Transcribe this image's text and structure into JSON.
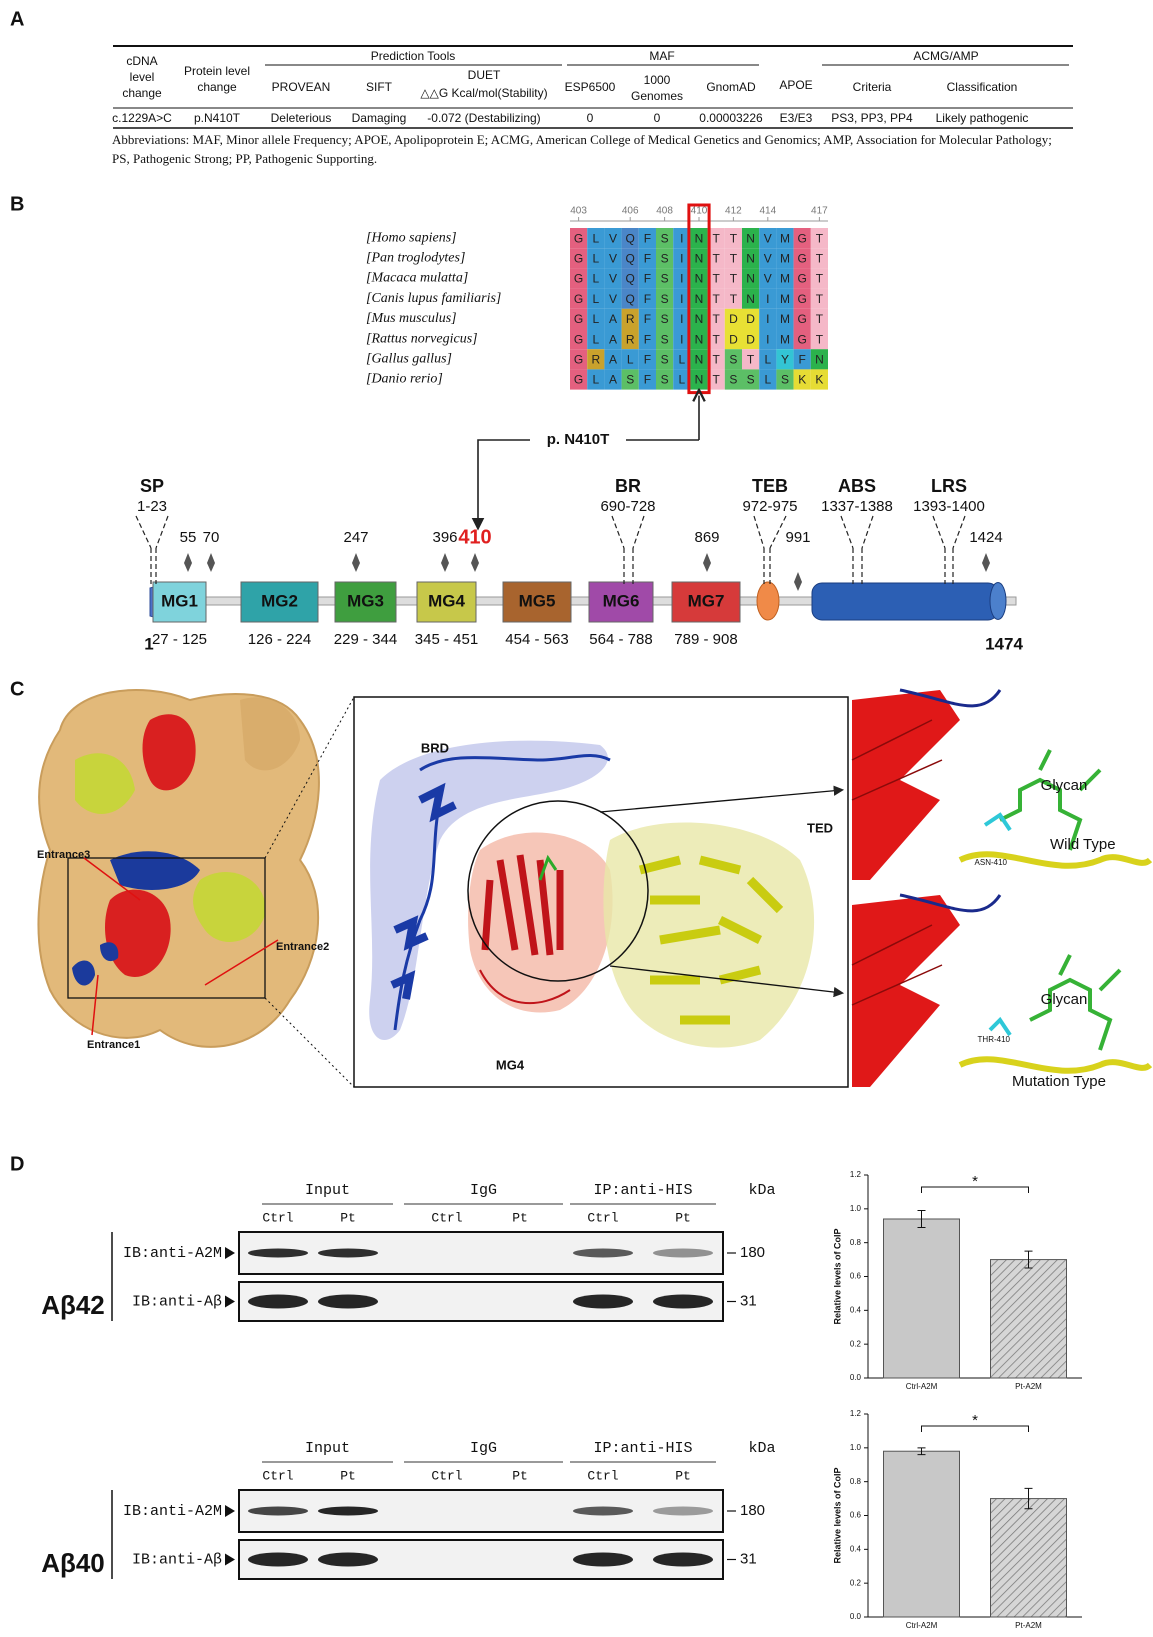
{
  "panel_a": {
    "label": "A",
    "header": {
      "cdna": [
        "cDNA",
        "level",
        "change"
      ],
      "protein": [
        "Protein level",
        "change"
      ],
      "prediction_tools": "Prediction Tools",
      "maf": "MAF",
      "apoe": "APOE",
      "acmg": "ACMG/AMP",
      "provean": "PROVEAN",
      "sift": "SIFT",
      "duet": [
        "DUET",
        "△△G Kcal/mol(Stability)"
      ],
      "esp": "ESP6500",
      "genomes": [
        "1000",
        "Genomes"
      ],
      "gnomad": "GnomAD",
      "criteria": "Criteria",
      "classification": "Classification"
    },
    "row": [
      "c.1229A>C",
      "p.N410T",
      "Deleterious",
      "Damaging",
      "-0.072 (Destabilizing)",
      "0",
      "0",
      "0.00003226",
      "E3/E3",
      "PS3, PP3, PP4",
      "Likely pathogenic"
    ],
    "note": "Abbreviations: MAF, Minor allele Frequency; APOE, Apolipoprotein E; ACMG, American College of Medical Genetics and Genomics; AMP, Association for Molecular Pathology; PS, Pathogenic Strong; PP, Pathogenic Supporting."
  },
  "panel_b": {
    "label": "B",
    "alignment": {
      "positions": [
        403,
        406,
        408,
        410,
        412,
        414,
        417
      ],
      "species": [
        "[Homo sapiens]",
        "[Pan troglodytes]",
        "[Macaca mulatta]",
        "[Canis lupus familiaris]",
        "[Mus musculus]",
        "[Rattus norvegicus]",
        "[Gallus gallus]",
        "[Danio rerio]"
      ],
      "sequences": [
        "GLVQFSINTTNVMGT",
        "GLVQFSINTTNVMGT",
        "GLVQFSINTTNVMGT",
        "GLVQFSINTTNIMGT",
        "GLARFSINTDDIMGT",
        "GLARFSINTDDIMGT",
        "GRALFSLNTSTLYFN",
        "GLASFSLNTSSLSKK"
      ],
      "residue_colors": {
        "G": "#e4607f",
        "L": "#3a9ad4",
        "V": "#3a9ad4",
        "Q": "#4a86c8",
        "F": "#3a9ad4",
        "S": "#5cbf66",
        "I": "#3a9ad4",
        "N": "#2bb24c",
        "T": "#f5b8c8",
        "M": "#3a9ad4",
        "A": "#3a9ad4",
        "R": "#c9a22c",
        "D": "#e8e034",
        "Y": "#33c4d4",
        "K": "#e6dc34"
      }
    },
    "mutation": "p. N410T",
    "start": 1,
    "end": 1474,
    "regions": [
      {
        "name": "SP",
        "range": "1-23"
      },
      {
        "name": "BR",
        "range": "690-728"
      },
      {
        "name": "TEB",
        "range": "972-975"
      },
      {
        "name": "ABS",
        "range": "1337-1388"
      },
      {
        "name": "LRS",
        "range": "1393-1400"
      }
    ],
    "sites": [
      55,
      70,
      247,
      396,
      410,
      869,
      991,
      1424
    ],
    "domains": [
      {
        "name": "MG1",
        "range": "27 - 125",
        "color": "#7fd3dc"
      },
      {
        "name": "MG2",
        "range": "126 - 224",
        "color": "#2fa3a8"
      },
      {
        "name": "MG3",
        "range": "229 - 344",
        "color": "#3f9e3f"
      },
      {
        "name": "MG4",
        "range": "345 - 451",
        "color": "#c7c84a"
      },
      {
        "name": "MG5",
        "range": "454 - 563",
        "color": "#a8642e"
      },
      {
        "name": "MG6",
        "range": "564 - 788",
        "color": "#a04aa8"
      },
      {
        "name": "MG7",
        "range": "789 - 908",
        "color": "#d63a3a"
      }
    ]
  },
  "panel_c": {
    "label": "C",
    "entrances": [
      "Entrance3",
      "Entrance2",
      "Entrance1"
    ],
    "brd": "BRD",
    "ted": "TED",
    "mg4": "MG4",
    "wild": {
      "glycan": "Glycan",
      "residue": "ASN-410",
      "type": "Wild Type"
    },
    "mutant": {
      "glycan": "Glycan",
      "residue": "THR-410",
      "type": "Mutation Type"
    }
  },
  "panel_d": {
    "label": "D",
    "blots": [
      {
        "title": "Aβ42",
        "groups": [
          "Input",
          "IgG",
          "IP:anti-HIS"
        ],
        "kda": "kDa",
        "lanes": [
          "Ctrl",
          "Pt",
          "Ctrl",
          "Pt",
          "Ctrl",
          "Pt"
        ],
        "rows": [
          {
            "label": "IB:anti-A2M",
            "size": 180
          },
          {
            "label": "IB:anti-Aβ",
            "size": 31
          }
        ]
      },
      {
        "title": "Aβ40",
        "groups": [
          "Input",
          "IgG",
          "IP:anti-HIS"
        ],
        "kda": "kDa",
        "lanes": [
          "Ctrl",
          "Pt",
          "Ctrl",
          "Pt",
          "Ctrl",
          "Pt"
        ],
        "rows": [
          {
            "label": "IB:anti-A2M",
            "size": 180
          },
          {
            "label": "IB:anti-Aβ",
            "size": 31
          }
        ]
      }
    ]
  },
  "chart_data": [
    {
      "type": "bar",
      "ylabel": "Relative levels of CoIP",
      "categories": [
        "Ctrl-A2M",
        "Pt-A2M"
      ],
      "values": [
        0.94,
        0.7
      ],
      "errors": [
        0.05,
        0.05
      ],
      "color": "#c8c8c8",
      "hatch": [
        false,
        true
      ],
      "ylim": [
        0,
        1.2
      ],
      "yticks": [
        {
          "value": 0,
          "label": "0.0"
        },
        {
          "value": 0.2,
          "label": "0.2"
        },
        {
          "value": 0.4,
          "label": "0.4"
        },
        {
          "value": 0.6,
          "label": "0.6"
        },
        {
          "value": 0.8,
          "label": "0.8"
        },
        {
          "value": 1,
          "label": "1.0"
        },
        {
          "value": 1.2,
          "label": "1.2"
        }
      ],
      "annotation": "*"
    },
    {
      "type": "bar",
      "ylabel": "Relative levels of CoIP",
      "categories": [
        "Ctrl-A2M",
        "Pt-A2M"
      ],
      "values": [
        0.98,
        0.7
      ],
      "errors": [
        0.02,
        0.06
      ],
      "color": "#c8c8c8",
      "hatch": [
        false,
        true
      ],
      "ylim": [
        0,
        1.2
      ],
      "yticks": [
        {
          "value": 0,
          "label": "0.0"
        },
        {
          "value": 0.2,
          "label": "0.2"
        },
        {
          "value": 0.4,
          "label": "0.4"
        },
        {
          "value": 0.6,
          "label": "0.6"
        },
        {
          "value": 0.8,
          "label": "0.8"
        },
        {
          "value": 1,
          "label": "1.0"
        },
        {
          "value": 1.2,
          "label": "1.2"
        }
      ],
      "annotation": "*"
    }
  ]
}
